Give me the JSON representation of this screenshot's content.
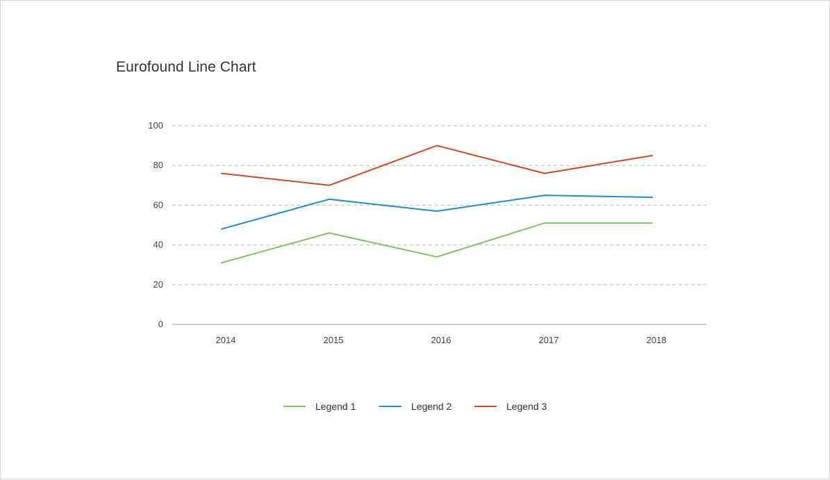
{
  "chart_data": {
    "type": "line",
    "title": "Eurofound Line Chart",
    "categories": [
      "2014",
      "2015",
      "2016",
      "2017",
      "2018"
    ],
    "y_ticks": [
      "0",
      "20",
      "40",
      "60",
      "80",
      "100"
    ],
    "ylim": [
      0,
      100
    ],
    "grid": "horizontal-dashed",
    "legend_position": "bottom",
    "series": [
      {
        "name": "Legend 1",
        "color": "#7dc466",
        "values": [
          31,
          46,
          34,
          51,
          51
        ]
      },
      {
        "name": "Legend 2",
        "color": "#1e8ccc",
        "values": [
          48,
          63,
          57,
          65,
          64
        ]
      },
      {
        "name": "Legend 3",
        "color": "#d1492a",
        "values": [
          76,
          70,
          90,
          76,
          85
        ]
      }
    ]
  }
}
